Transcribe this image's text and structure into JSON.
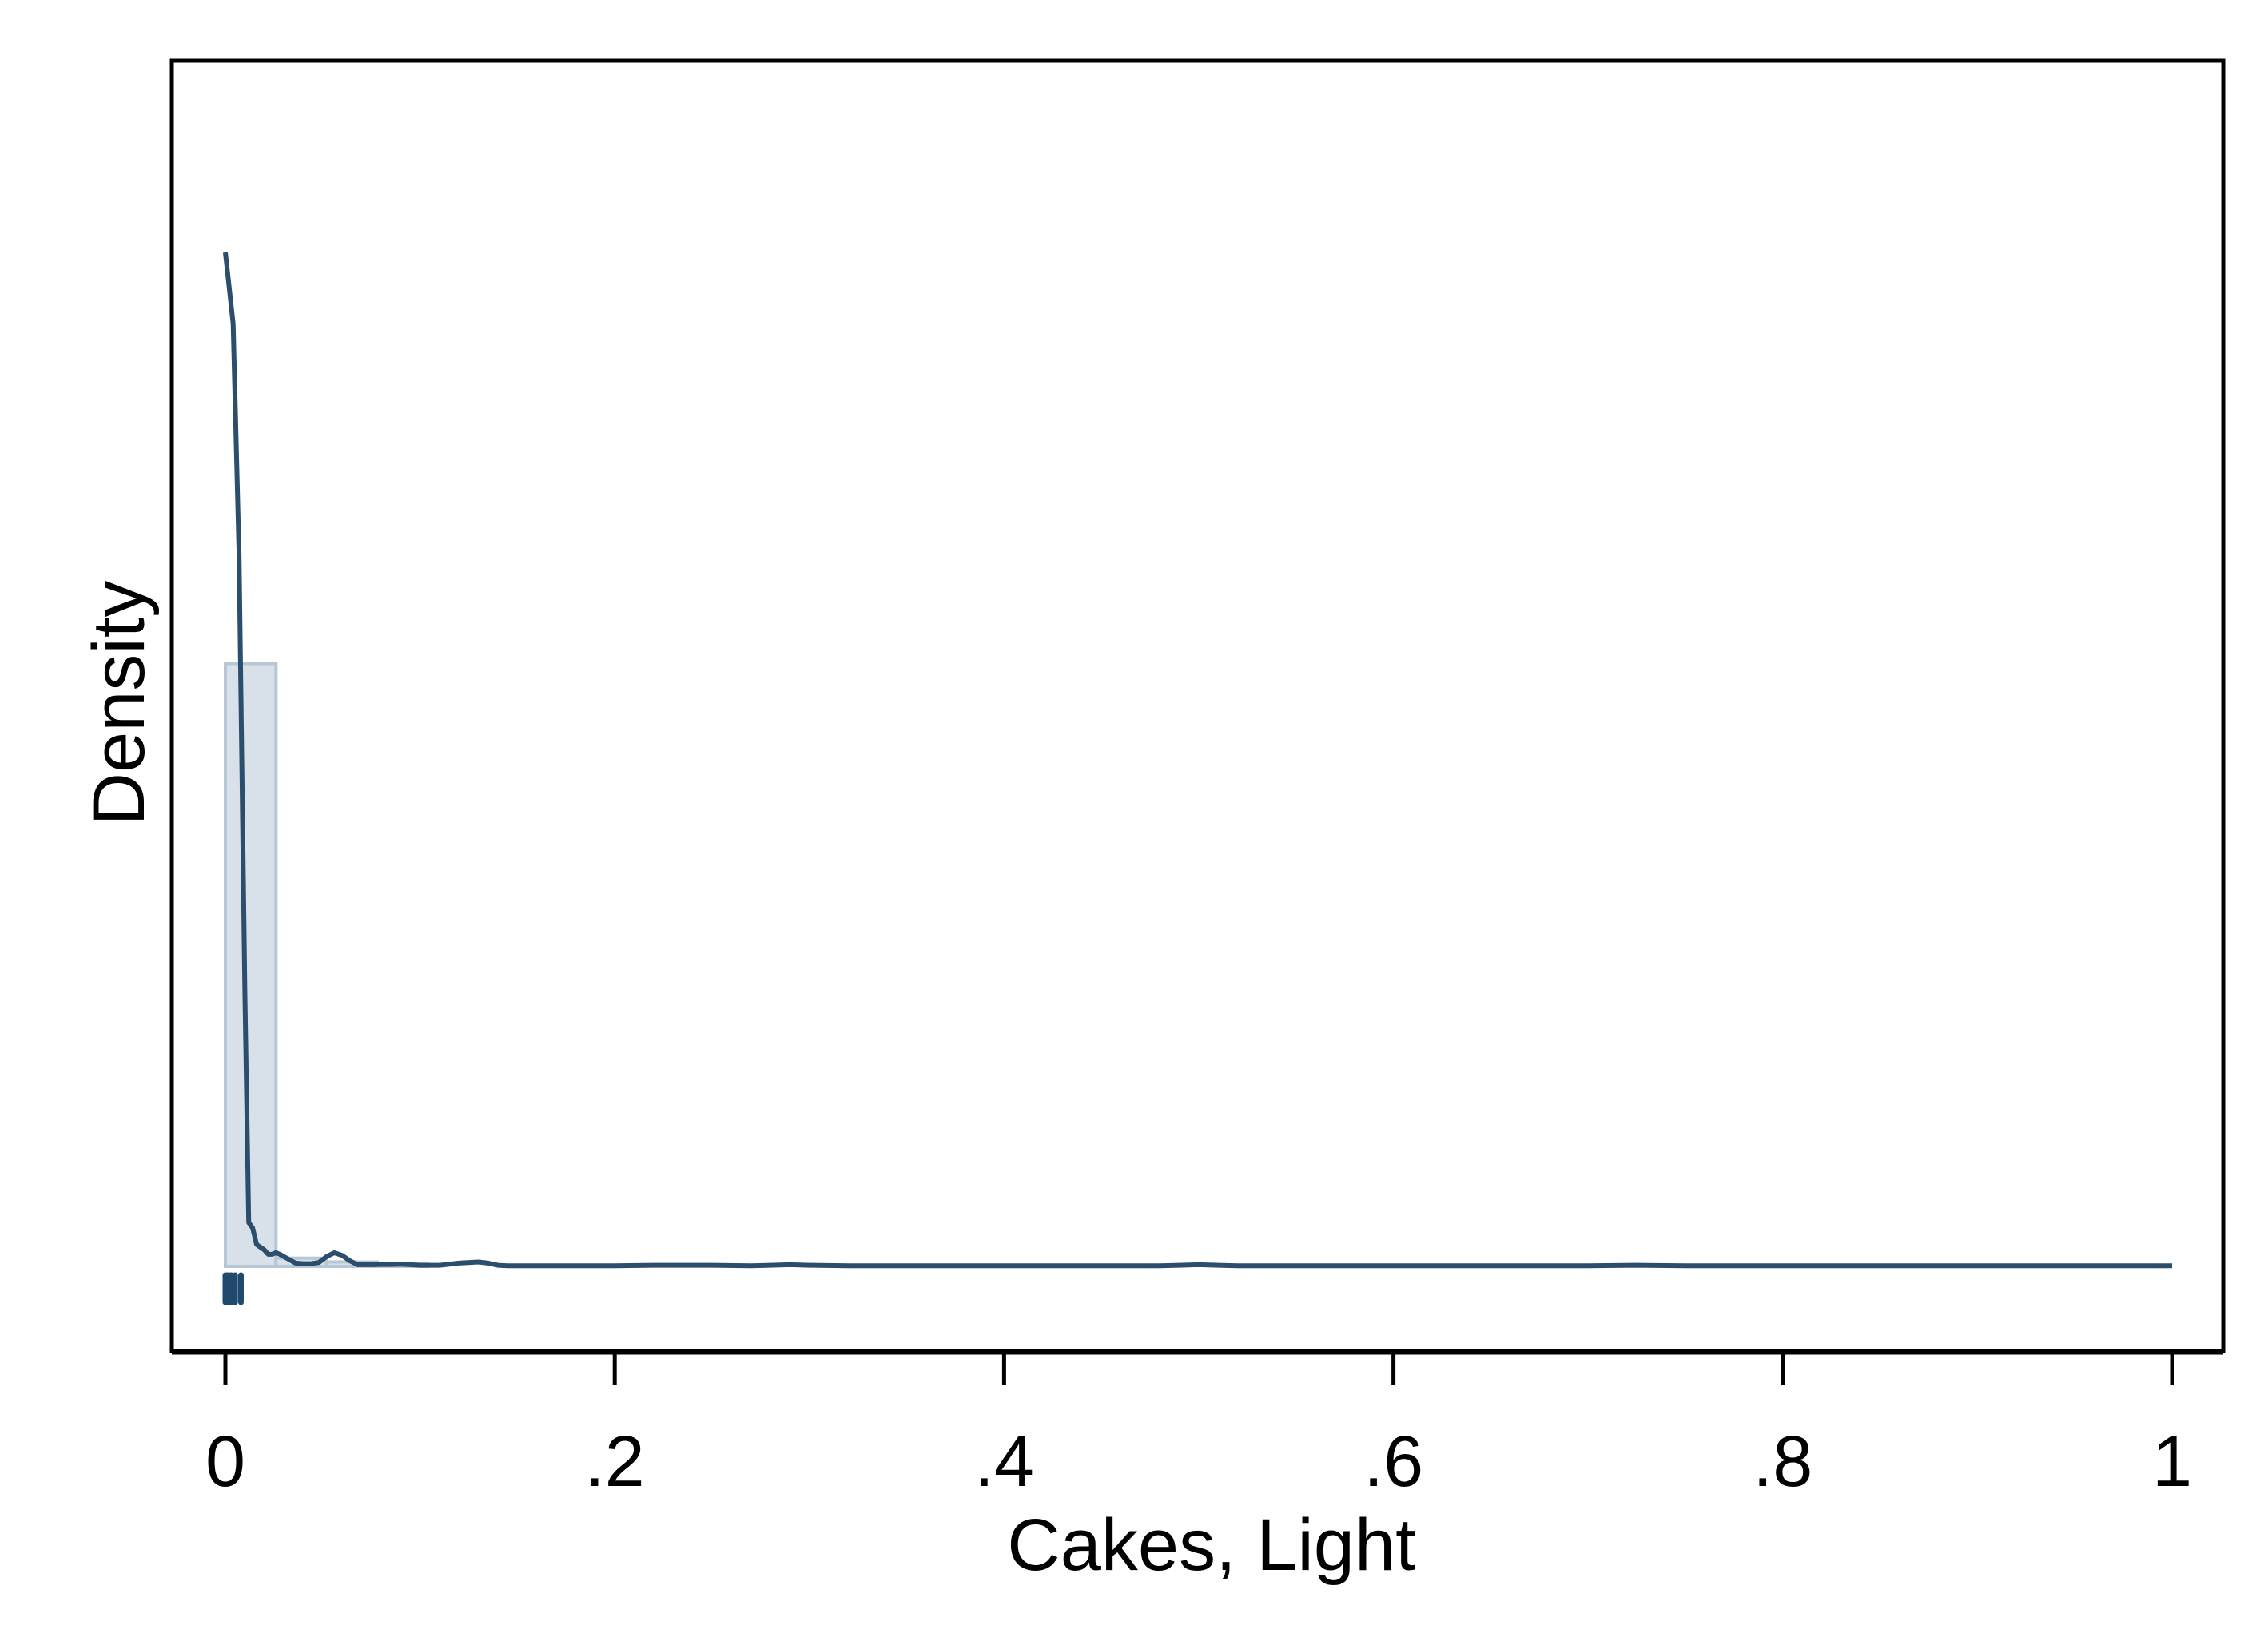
{
  "chart_data": {
    "type": "histogram+density",
    "xlabel": "Cakes, Light",
    "ylabel": "Density",
    "xlim": [
      0,
      1
    ],
    "ylim": [
      0,
      22
    ],
    "x_ticks": [
      {
        "value": 0,
        "label": "0"
      },
      {
        "value": 0.2,
        "label": ".2"
      },
      {
        "value": 0.4,
        "label": ".4"
      },
      {
        "value": 0.6,
        "label": ".6"
      },
      {
        "value": 0.8,
        "label": ".8"
      },
      {
        "value": 1,
        "label": "1"
      }
    ],
    "histogram": {
      "bins": [
        {
          "x0": 0.0,
          "x1": 0.026,
          "density": 11.0
        },
        {
          "x0": 0.026,
          "x1": 0.052,
          "density": 0.15
        },
        {
          "x0": 0.052,
          "x1": 0.078,
          "density": 0.08
        },
        {
          "x0": 0.078,
          "x1": 0.104,
          "density": 0.05
        }
      ]
    },
    "density_curve": {
      "x": [
        0.0,
        0.004,
        0.007,
        0.01,
        0.012,
        0.014,
        0.016,
        0.018,
        0.02,
        0.022,
        0.024,
        0.026,
        0.028,
        0.03,
        0.033,
        0.036,
        0.04,
        0.044,
        0.048,
        0.052,
        0.056,
        0.06,
        0.064,
        0.068,
        0.072,
        0.076,
        0.08,
        0.085,
        0.09,
        0.095,
        0.1,
        0.11,
        0.12,
        0.13,
        0.135,
        0.14,
        0.145,
        0.15,
        0.155,
        0.16,
        0.18,
        0.2,
        0.22,
        0.25,
        0.27,
        0.28,
        0.29,
        0.3,
        0.32,
        0.35,
        0.4,
        0.45,
        0.48,
        0.49,
        0.5,
        0.51,
        0.52,
        0.6,
        0.7,
        0.725,
        0.75,
        0.8,
        0.9,
        1.0
      ],
      "y": [
        18.5,
        17.2,
        13.0,
        5.0,
        0.8,
        0.7,
        0.4,
        0.35,
        0.3,
        0.22,
        0.22,
        0.25,
        0.22,
        0.18,
        0.12,
        0.06,
        0.05,
        0.05,
        0.07,
        0.18,
        0.25,
        0.2,
        0.1,
        0.03,
        0.03,
        0.03,
        0.035,
        0.035,
        0.04,
        0.03,
        0.02,
        0.02,
        0.06,
        0.08,
        0.06,
        0.02,
        0.01,
        0.01,
        0.01,
        0.01,
        0.01,
        0.01,
        0.02,
        0.02,
        0.01,
        0.02,
        0.03,
        0.02,
        0.01,
        0.01,
        0.01,
        0.01,
        0.01,
        0.02,
        0.03,
        0.02,
        0.01,
        0.01,
        0.01,
        0.02,
        0.01,
        0.01,
        0.01,
        0.01
      ]
    },
    "rug_marks": [
      {
        "x": 0.0
      },
      {
        "x": 0.001
      },
      {
        "x": 0.002
      },
      {
        "x": 0.003
      },
      {
        "x": 0.005
      },
      {
        "x": 0.008
      }
    ],
    "colors": {
      "curve": "#2a4e6c",
      "bar_fill": "#d8e1e9",
      "bar_stroke": "#b8c7d4",
      "rug": "#1f4a6e",
      "axis": "#000000"
    }
  }
}
